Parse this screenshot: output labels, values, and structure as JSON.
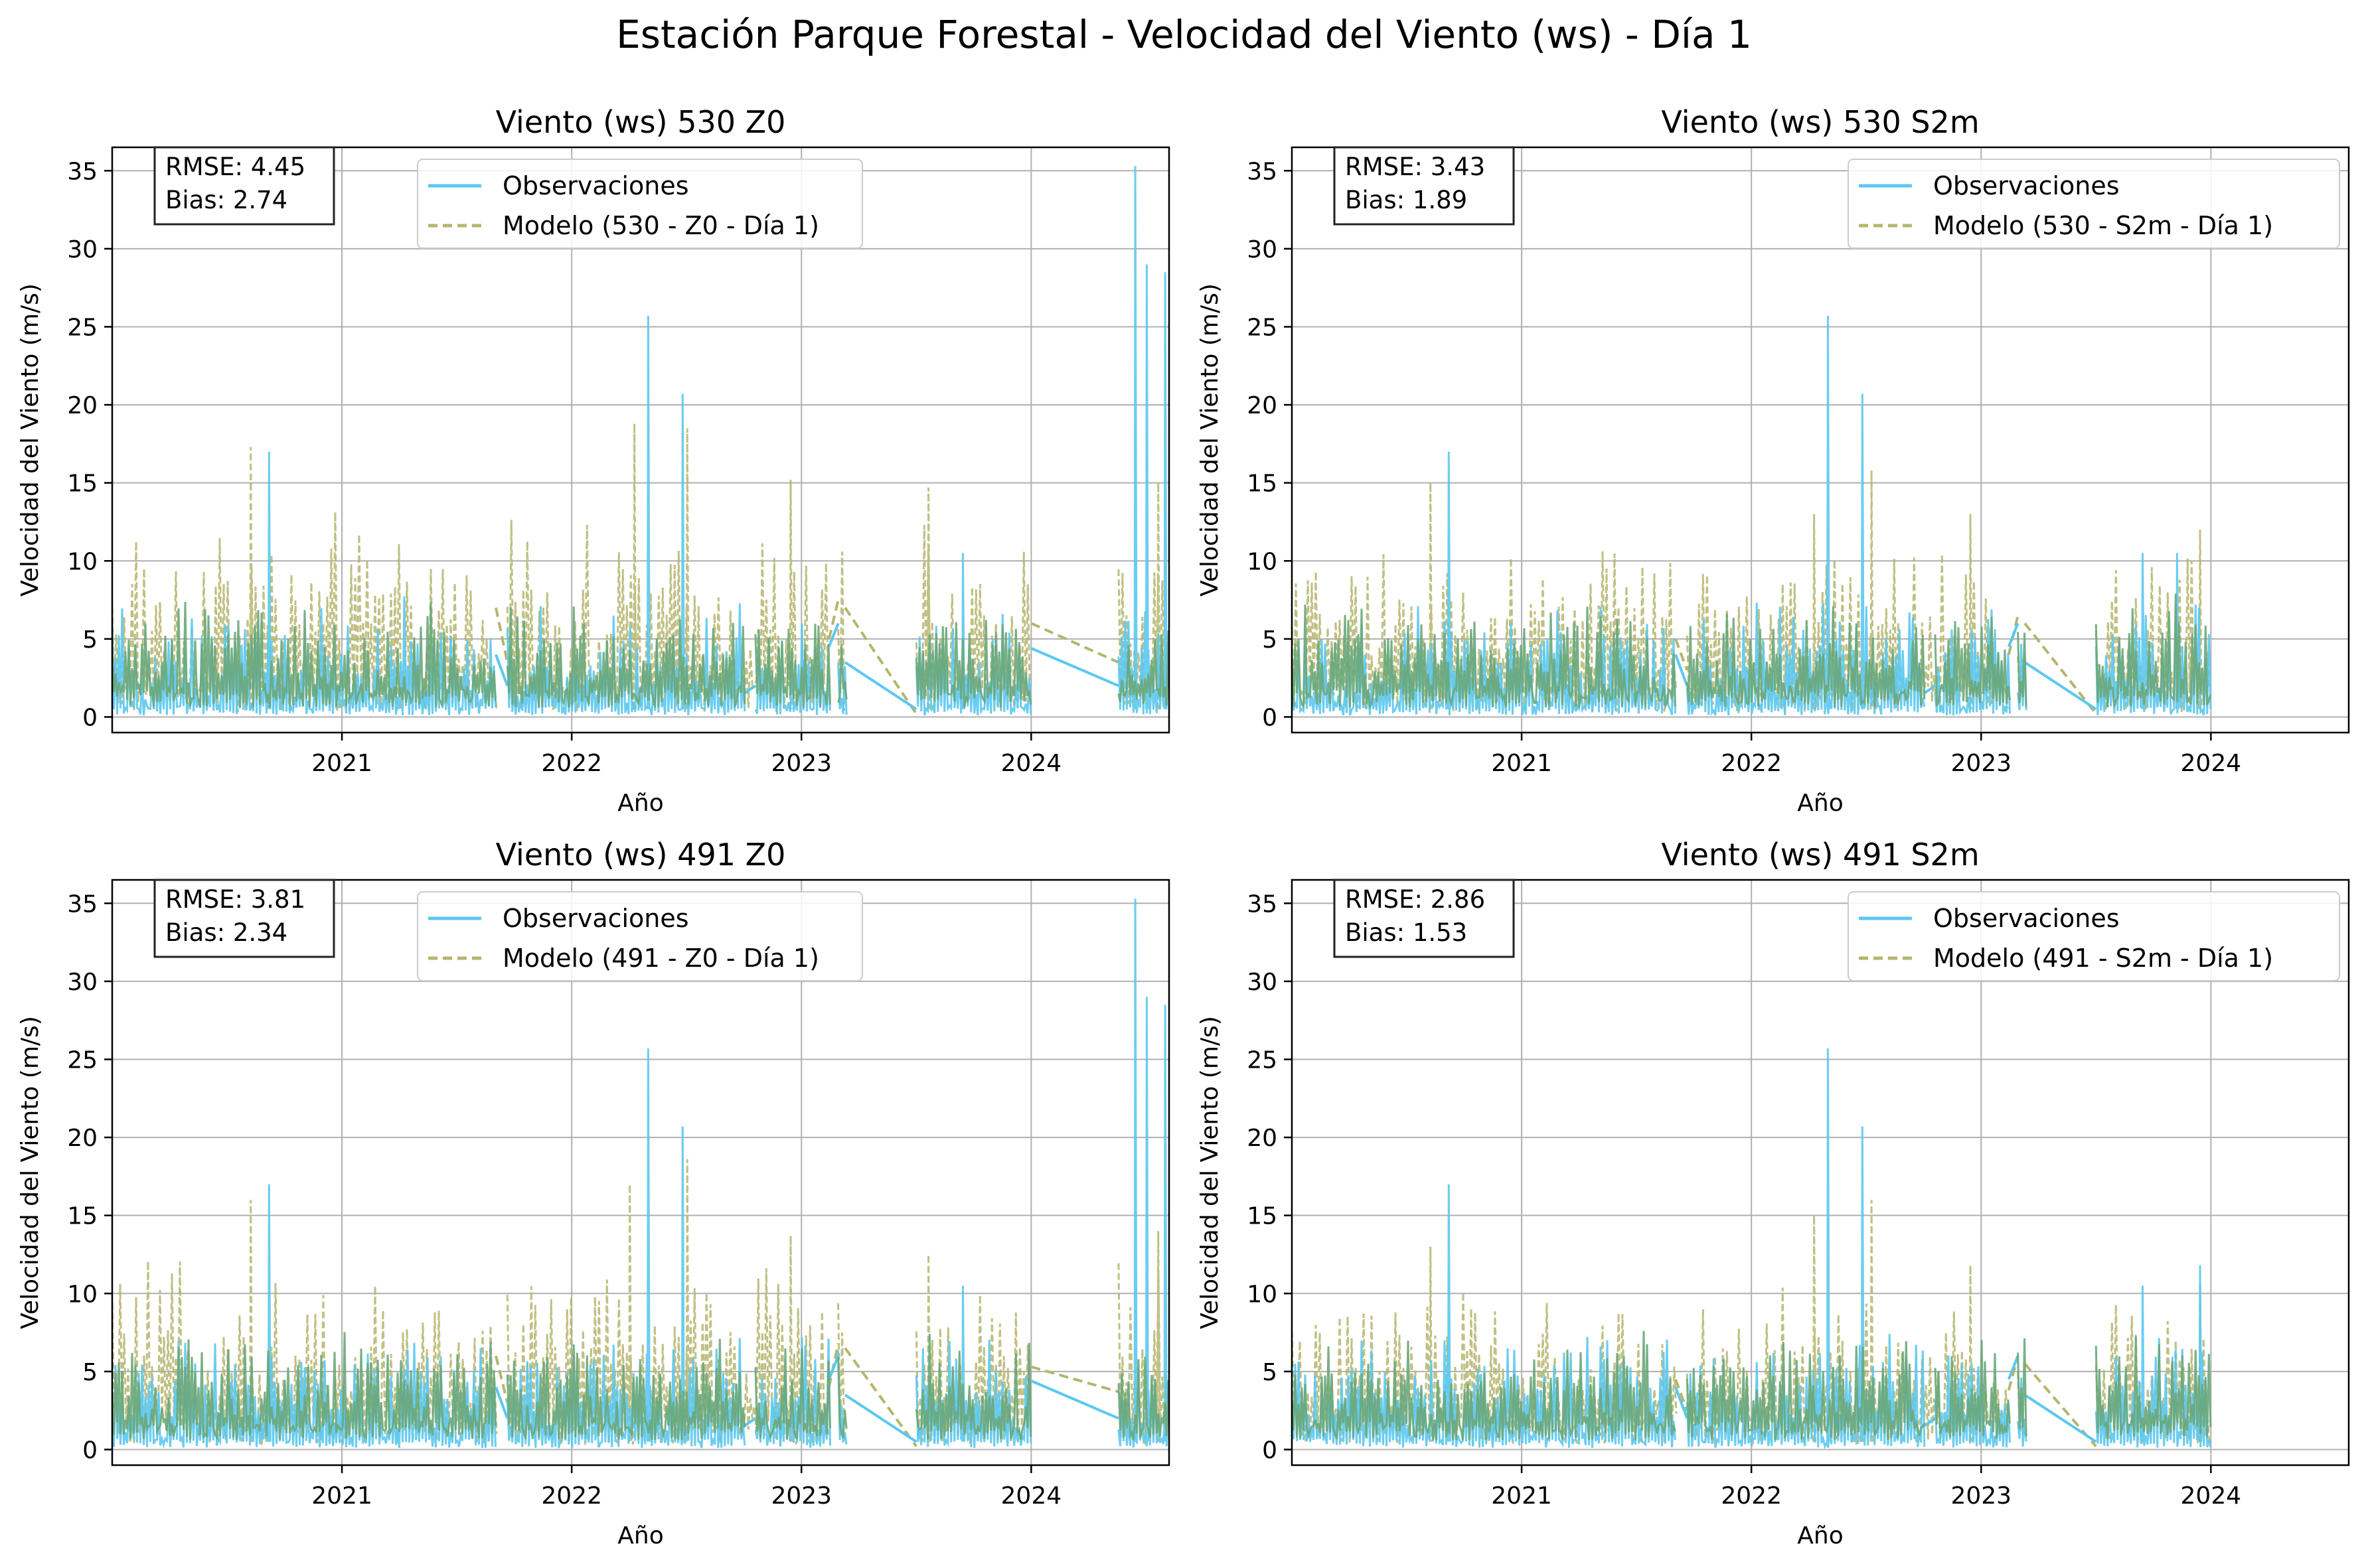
{
  "figure": {
    "suptitle": "Estación Parque Forestal - Velocidad del Viento (ws) - Día 1"
  },
  "colors": {
    "observations": "#5bc8f0",
    "model": "#b5b56e",
    "overlap": "#6aa77a",
    "grid": "#b0b0b0",
    "axes": "#000000"
  },
  "chart_data": [
    {
      "type": "line",
      "title": "Viento (ws) 530 Z0",
      "xlabel": "Año",
      "ylabel": "Velocidad del Viento (m/s)",
      "xlim": [
        2020.0,
        2024.6
      ],
      "ylim": [
        -1,
        36.5
      ],
      "xticks": [
        "2021",
        "2022",
        "2023",
        "2024"
      ],
      "yticks": [
        "0",
        "5",
        "10",
        "15",
        "20",
        "25",
        "30",
        "35"
      ],
      "grid": true,
      "legend_position": "top-center",
      "stats": {
        "rmse": "RMSE: 4.45",
        "bias": "Bias: 2.74"
      },
      "series": [
        {
          "name": "Observaciones",
          "style": "solid",
          "segments": [
            [
              2020.0,
              2021.67
            ],
            [
              2021.72,
              2022.75
            ],
            [
              2022.8,
              2023.12
            ],
            [
              2023.16,
              2023.19
            ],
            [
              2023.5,
              2024.0
            ],
            [
              2024.38,
              2024.6
            ]
          ],
          "floor": 0.4,
          "typical_peak": 7.5,
          "peaks": [
            [
              2020.68,
              17.0
            ],
            [
              2022.33,
              25.7
            ],
            [
              2022.48,
              20.7
            ],
            [
              2023.7,
              10.5
            ],
            [
              2024.45,
              35.3
            ],
            [
              2024.5,
              29.0
            ],
            [
              2024.58,
              28.5
            ]
          ],
          "gap_lines": [
            [
              2021.67,
              4.0,
              2021.72,
              2.0
            ],
            [
              2022.75,
              1.5,
              2022.8,
              2.0
            ],
            [
              2023.12,
              4.5,
              2023.16,
              6.0
            ],
            [
              2023.19,
              3.5,
              2023.5,
              0.5
            ],
            [
              2024.0,
              4.4,
              2024.38,
              2.0
            ]
          ]
        },
        {
          "name": "Modelo (530 - Z0 - Día 1)",
          "style": "dashed",
          "segments": [
            [
              2020.0,
              2021.67
            ],
            [
              2021.72,
              2023.12
            ],
            [
              2023.16,
              2023.19
            ],
            [
              2023.5,
              2024.0
            ],
            [
              2024.38,
              2024.6
            ]
          ],
          "typical_peak": 12.0,
          "peaks": [
            [
              2020.6,
              17.3
            ],
            [
              2022.27,
              18.8
            ],
            [
              2022.5,
              18.5
            ],
            [
              2022.95,
              15.2
            ],
            [
              2023.55,
              14.7
            ],
            [
              2024.55,
              15.0
            ]
          ],
          "gap_lines": [
            [
              2021.67,
              7.0,
              2021.72,
              3.5
            ],
            [
              2023.12,
              5.0,
              2023.16,
              7.5
            ],
            [
              2023.19,
              7.0,
              2023.5,
              0.2
            ],
            [
              2024.0,
              6.0,
              2024.38,
              3.5
            ]
          ]
        }
      ]
    },
    {
      "type": "line",
      "title": "Viento (ws) 530 S2m",
      "xlabel": "Año",
      "ylabel": "Velocidad del Viento (m/s)",
      "xlim": [
        2020.0,
        2024.6
      ],
      "ylim": [
        -1,
        36.5
      ],
      "xticks": [
        "2021",
        "2022",
        "2023",
        "2024"
      ],
      "yticks": [
        "0",
        "5",
        "10",
        "15",
        "20",
        "25",
        "30",
        "35"
      ],
      "grid": true,
      "legend_position": "top-right",
      "stats": {
        "rmse": "RMSE: 3.43",
        "bias": "Bias: 1.89"
      },
      "series": [
        {
          "name": "Observaciones",
          "style": "solid",
          "segments": [
            [
              2020.0,
              2021.67
            ],
            [
              2021.72,
              2022.75
            ],
            [
              2022.8,
              2023.12
            ],
            [
              2023.16,
              2023.19
            ],
            [
              2023.5,
              2024.0
            ]
          ],
          "floor": 0.4,
          "typical_peak": 7.5,
          "peaks": [
            [
              2020.68,
              17.0
            ],
            [
              2022.33,
              25.7
            ],
            [
              2022.48,
              20.7
            ],
            [
              2023.7,
              10.5
            ],
            [
              2023.85,
              10.5
            ]
          ],
          "gap_lines": [
            [
              2021.67,
              4.0,
              2021.72,
              2.0
            ],
            [
              2022.75,
              1.5,
              2022.8,
              2.0
            ],
            [
              2023.12,
              4.5,
              2023.16,
              6.0
            ],
            [
              2023.19,
              3.5,
              2023.5,
              0.5
            ]
          ]
        },
        {
          "name": "Modelo (530 - S2m - Día 1)",
          "style": "dashed",
          "segments": [
            [
              2020.0,
              2021.67
            ],
            [
              2021.72,
              2023.12
            ],
            [
              2023.16,
              2023.19
            ],
            [
              2023.5,
              2024.0
            ]
          ],
          "typical_peak": 10.0,
          "peaks": [
            [
              2020.6,
              15.0
            ],
            [
              2022.27,
              13.0
            ],
            [
              2022.52,
              15.8
            ],
            [
              2022.95,
              13.0
            ],
            [
              2023.95,
              12.0
            ]
          ],
          "gap_lines": [
            [
              2021.67,
              5.0,
              2021.72,
              3.0
            ],
            [
              2023.12,
              4.0,
              2023.16,
              6.5
            ],
            [
              2023.19,
              6.0,
              2023.5,
              0.2
            ]
          ]
        }
      ]
    },
    {
      "type": "line",
      "title": "Viento (ws) 491 Z0",
      "xlabel": "Año",
      "ylabel": "Velocidad del Viento (m/s)",
      "xlim": [
        2020.0,
        2024.6
      ],
      "ylim": [
        -1,
        36.5
      ],
      "xticks": [
        "2021",
        "2022",
        "2023",
        "2024"
      ],
      "yticks": [
        "0",
        "5",
        "10",
        "15",
        "20",
        "25",
        "30",
        "35"
      ],
      "grid": true,
      "legend_position": "top-center",
      "stats": {
        "rmse": "RMSE: 3.81",
        "bias": "Bias: 2.34"
      },
      "series": [
        {
          "name": "Observaciones",
          "style": "solid",
          "segments": [
            [
              2020.0,
              2021.67
            ],
            [
              2021.72,
              2022.75
            ],
            [
              2022.8,
              2023.12
            ],
            [
              2023.16,
              2023.19
            ],
            [
              2023.5,
              2024.0
            ],
            [
              2024.38,
              2024.6
            ]
          ],
          "floor": 0.4,
          "typical_peak": 7.5,
          "peaks": [
            [
              2020.68,
              17.0
            ],
            [
              2022.33,
              25.7
            ],
            [
              2022.48,
              20.7
            ],
            [
              2023.7,
              10.5
            ],
            [
              2024.45,
              35.3
            ],
            [
              2024.5,
              29.0
            ],
            [
              2024.58,
              28.5
            ]
          ],
          "gap_lines": [
            [
              2021.67,
              4.0,
              2021.72,
              2.0
            ],
            [
              2022.75,
              1.5,
              2022.8,
              2.0
            ],
            [
              2023.12,
              4.5,
              2023.16,
              6.0
            ],
            [
              2023.19,
              3.5,
              2023.5,
              0.5
            ],
            [
              2024.0,
              4.4,
              2024.38,
              2.0
            ]
          ]
        },
        {
          "name": "Modelo (491 - Z0 - Día 1)",
          "style": "dashed",
          "segments": [
            [
              2020.0,
              2021.67
            ],
            [
              2021.72,
              2023.12
            ],
            [
              2023.16,
              2023.19
            ],
            [
              2023.5,
              2024.0
            ],
            [
              2024.38,
              2024.6
            ]
          ],
          "typical_peak": 11.0,
          "peaks": [
            [
              2020.6,
              16.0
            ],
            [
              2022.25,
              17.0
            ],
            [
              2022.5,
              18.6
            ],
            [
              2022.95,
              13.7
            ],
            [
              2023.55,
              12.5
            ],
            [
              2024.55,
              14.0
            ]
          ],
          "gap_lines": [
            [
              2021.67,
              6.0,
              2021.72,
              3.0
            ],
            [
              2023.12,
              4.0,
              2023.16,
              6.8
            ],
            [
              2023.19,
              6.5,
              2023.5,
              0.2
            ],
            [
              2024.0,
              5.3,
              2024.38,
              3.7
            ]
          ]
        }
      ]
    },
    {
      "type": "line",
      "title": "Viento (ws) 491 S2m",
      "xlabel": "Año",
      "ylabel": "Velocidad del Viento (m/s)",
      "xlim": [
        2020.0,
        2024.6
      ],
      "ylim": [
        -1,
        36.5
      ],
      "xticks": [
        "2021",
        "2022",
        "2023",
        "2024"
      ],
      "yticks": [
        "0",
        "5",
        "10",
        "15",
        "20",
        "25",
        "30",
        "35"
      ],
      "grid": true,
      "legend_position": "top-right",
      "stats": {
        "rmse": "RMSE: 2.86",
        "bias": "Bias: 1.53"
      },
      "series": [
        {
          "name": "Observaciones",
          "style": "solid",
          "segments": [
            [
              2020.0,
              2021.67
            ],
            [
              2021.72,
              2022.75
            ],
            [
              2022.8,
              2023.12
            ],
            [
              2023.16,
              2023.19
            ],
            [
              2023.5,
              2024.0
            ]
          ],
          "floor": 0.4,
          "typical_peak": 7.5,
          "peaks": [
            [
              2020.68,
              17.0
            ],
            [
              2022.33,
              25.7
            ],
            [
              2022.48,
              20.7
            ],
            [
              2023.7,
              10.5
            ],
            [
              2023.95,
              11.8
            ]
          ],
          "gap_lines": [
            [
              2021.67,
              4.0,
              2021.72,
              2.0
            ],
            [
              2022.75,
              1.5,
              2022.8,
              2.0
            ],
            [
              2023.12,
              4.5,
              2023.16,
              6.0
            ],
            [
              2023.19,
              3.5,
              2023.5,
              0.5
            ]
          ]
        },
        {
          "name": "Modelo (491 - S2m - Día 1)",
          "style": "dashed",
          "segments": [
            [
              2020.0,
              2021.67
            ],
            [
              2021.72,
              2023.12
            ],
            [
              2023.16,
              2023.19
            ],
            [
              2023.5,
              2024.0
            ]
          ],
          "typical_peak": 9.0,
          "peaks": [
            [
              2020.6,
              13.0
            ],
            [
              2022.27,
              15.0
            ],
            [
              2022.52,
              16.0
            ],
            [
              2022.95,
              11.8
            ],
            [
              2023.95,
              10.5
            ]
          ],
          "gap_lines": [
            [
              2021.67,
              4.5,
              2021.72,
              2.5
            ],
            [
              2023.12,
              3.8,
              2023.16,
              6.0
            ],
            [
              2023.19,
              5.5,
              2023.5,
              0.2
            ]
          ]
        }
      ]
    }
  ]
}
